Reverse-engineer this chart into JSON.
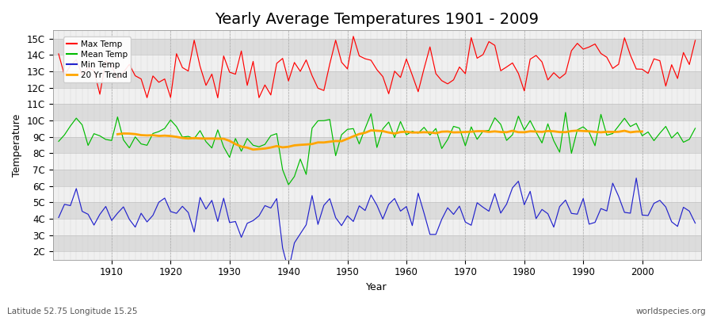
{
  "title": "Yearly Average Temperatures 1901 - 2009",
  "xlabel": "Year",
  "ylabel": "Temperature",
  "lat_lon_label": "Latitude 52.75 Longitude 15.25",
  "source_label": "worldspecies.org",
  "year_start": 1901,
  "year_end": 2009,
  "yticks": [
    "2C",
    "3C",
    "4C",
    "5C",
    "6C",
    "7C",
    "8C",
    "9C",
    "10C",
    "11C",
    "12C",
    "13C",
    "14C",
    "15C"
  ],
  "ytick_values": [
    2,
    3,
    4,
    5,
    6,
    7,
    8,
    9,
    10,
    11,
    12,
    13,
    14,
    15
  ],
  "ylim": [
    1.5,
    15.5
  ],
  "bg_color": "#ffffff",
  "plot_bg_color": "#e8e8e8",
  "band_light": "#f0f0f0",
  "band_dark": "#dcdcdc",
  "colors": {
    "max": "#ff0000",
    "mean": "#00bb00",
    "min": "#2222cc",
    "trend": "#ffa500"
  },
  "legend_labels": [
    "Max Temp",
    "Mean Temp",
    "Min Temp",
    "20 Yr Trend"
  ],
  "title_fontsize": 14,
  "axis_label_fontsize": 9,
  "tick_fontsize": 8.5
}
